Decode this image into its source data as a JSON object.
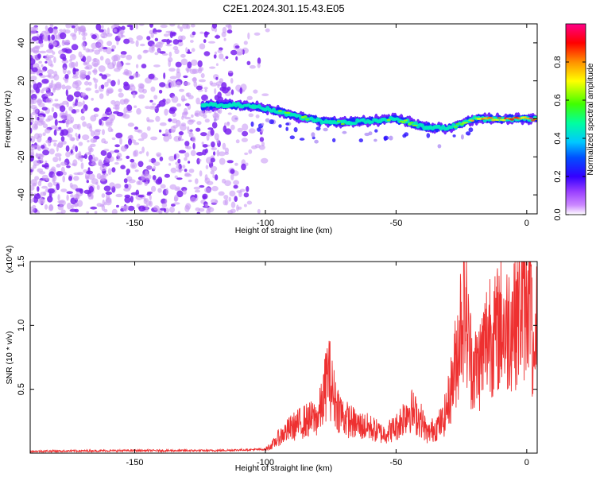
{
  "title": "C2E1.2024.301.15.43.E05",
  "colors": {
    "scatter_purple": "#7a22ee",
    "snr_line": "#ee3030",
    "colormap": [
      "#ffffff",
      "#cc88ff",
      "#7a00ff",
      "#0000ff",
      "#00c8ff",
      "#00ff7a",
      "#88ff00",
      "#ffff00",
      "#ff8800",
      "#ff0000",
      "#ff00aa"
    ]
  },
  "chart_data": [
    {
      "type": "heatmap",
      "title": "C2E1.2024.301.15.43.E05",
      "xlabel": "Height of straight line (km)",
      "ylabel": "Frequency (Hz)",
      "xlim": [
        -190,
        4
      ],
      "ylim": [
        -50,
        50
      ],
      "x_ticks": [
        -150,
        -100,
        -50,
        0
      ],
      "x_tick_labels": [
        "-150",
        "-100",
        "-50",
        "0"
      ],
      "y_ticks": [
        -40,
        -20,
        0,
        20,
        40
      ],
      "y_tick_labels": [
        "-40",
        "-20",
        "0",
        "20",
        "40"
      ],
      "colorbar": {
        "label": "Normalized spectral amplitude",
        "range": [
          0,
          1
        ],
        "ticks": [
          0.0,
          0.2,
          0.4,
          0.6,
          0.8
        ],
        "tick_labels": [
          "0.0",
          "0.2",
          "0.4",
          "0.6",
          "0.8"
        ]
      },
      "ridge_x": [
        -124,
        -115,
        -108,
        -100,
        -90,
        -80,
        -70,
        -60,
        -50,
        -40,
        -30,
        -20,
        -10,
        0,
        4
      ],
      "ridge_y": [
        7,
        7.5,
        7,
        5.5,
        2,
        -1,
        -2,
        -1,
        0,
        -4,
        -5,
        0,
        0,
        0,
        0
      ],
      "ridge_amplitude": [
        0.5,
        0.48,
        0.5,
        0.55,
        0.62,
        0.55,
        0.58,
        0.55,
        0.62,
        0.58,
        0.5,
        0.75,
        0.85,
        0.92,
        0.9
      ]
    },
    {
      "type": "line",
      "xlabel": "Height of straight line (km)",
      "ylabel": "SNR (10 * v/v)",
      "y_scale_label": "(x10^4)",
      "xlim": [
        -190,
        4
      ],
      "ylim": [
        0,
        15000
      ],
      "x_ticks": [
        -150,
        -100,
        -50,
        0
      ],
      "x_tick_labels": [
        "-150",
        "-100",
        "-50",
        "0"
      ],
      "y_ticks": [
        5000,
        10000,
        15000
      ],
      "y_tick_labels": [
        "0.5",
        "1.0",
        "1.5"
      ],
      "series": [
        {
          "x": [
            -190,
            -150,
            -120,
            -110,
            -100,
            -97,
            -95,
            -90,
            -85,
            -80,
            -78,
            -76,
            -74,
            -72,
            -70,
            -65,
            -60,
            -55,
            -50,
            -45,
            -40,
            -38,
            -35,
            -32,
            -30,
            -28,
            -26,
            -24,
            -22,
            -20,
            -18,
            -16,
            -14,
            -12,
            -10,
            -8,
            -6,
            -4,
            -2,
            0,
            1,
            2,
            3,
            4
          ],
          "y": [
            150,
            200,
            200,
            250,
            300,
            700,
            1200,
            2000,
            2500,
            2800,
            4000,
            6500,
            4500,
            3500,
            2800,
            2200,
            2000,
            1500,
            2000,
            3500,
            2500,
            1500,
            2000,
            2500,
            4000,
            6000,
            9000,
            12500,
            8000,
            6500,
            7000,
            8500,
            10000,
            9000,
            10500,
            9500,
            10500,
            11000,
            11500,
            12500,
            15000,
            9000,
            5000,
            11500
          ]
        }
      ]
    }
  ]
}
